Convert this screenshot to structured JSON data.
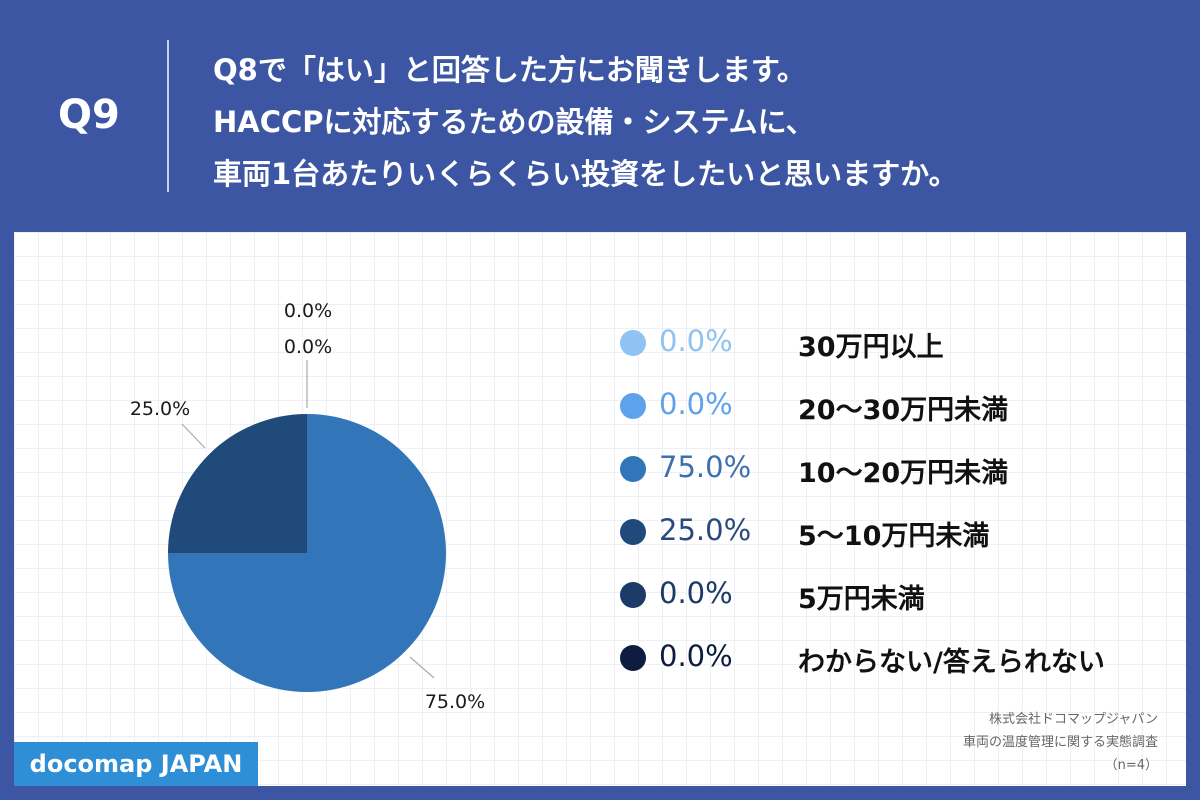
{
  "header": {
    "qnum": "Q9",
    "lines": [
      "Q8で「はい」と回答した方にお聞きします。",
      "HACCPに対応するための設備・システムに、",
      "車両1台あたりいくらくらい投資をしたいと思いますか。"
    ]
  },
  "colors": {
    "background": "#3d56a3",
    "panel": "#ffffff",
    "brand_badge": "#2f8fd6"
  },
  "chart_data": {
    "type": "pie",
    "categories": [
      "30万円以上",
      "20〜30万円未満",
      "10〜20万円未満",
      "5〜10万円未満",
      "5万円未満",
      "わからない/答えられない"
    ],
    "values": [
      0.0,
      0.0,
      75.0,
      25.0,
      0.0,
      0.0
    ],
    "value_labels": [
      "0.0%",
      "0.0%",
      "75.0%",
      "25.0%",
      "0.0%",
      "0.0%"
    ],
    "slice_colors": [
      "#8fc3f2",
      "#5fa2ec",
      "#3275b8",
      "#1f4a7a",
      "#1c3a66",
      "#0e1d3f"
    ],
    "legend_pct_colors": [
      "#8fc3f2",
      "#5fa2ec",
      "#3f6fae",
      "#2a4a7e",
      "#1c3a66",
      "#0e1d3f"
    ],
    "legend_placement": "right",
    "grid": false,
    "callouts": {
      "stacked_top": [
        "0.0%",
        "0.0%"
      ],
      "left": "25.0%",
      "bottom_right": "75.0%"
    }
  },
  "footer": {
    "brand": "docomap JAPAN",
    "source_lines": [
      "株式会社ドコマップジャパン",
      "車両の温度管理に関する実態調査",
      "（n=4）"
    ]
  }
}
